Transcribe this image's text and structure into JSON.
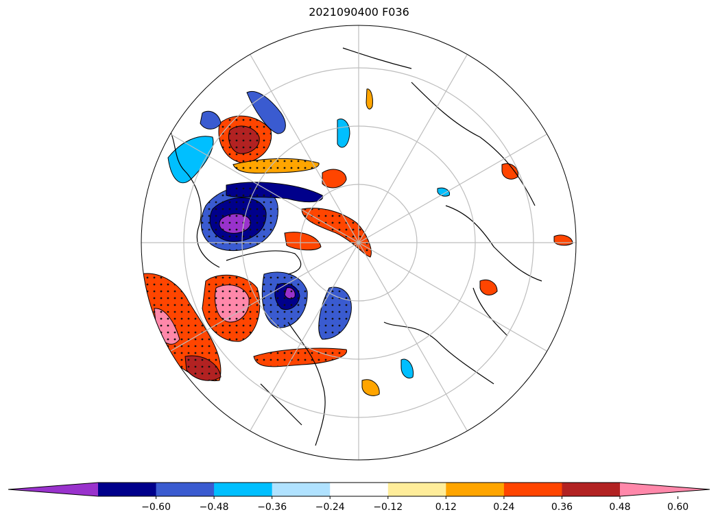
{
  "title": "2021090400 F036",
  "colorbar": {
    "bins": [
      {
        "color": "#9932cc"
      },
      {
        "color": "#00008b"
      },
      {
        "color": "#3a5bd0"
      },
      {
        "color": "#00bfff"
      },
      {
        "color": "#b0e2ff"
      },
      {
        "color": "#ffffff"
      },
      {
        "color": "#ffed9a"
      },
      {
        "color": "#ffa500"
      },
      {
        "color": "#ff4500"
      },
      {
        "color": "#b22222"
      },
      {
        "color": "#ff88aa"
      }
    ],
    "tick_labels": [
      "−0.60",
      "−0.48",
      "−0.36",
      "−0.24",
      "−0.12",
      "0.12",
      "0.24",
      "0.36",
      "0.48",
      "0.60"
    ],
    "extend": "both"
  },
  "map": {
    "projection": "north-polar-stereographic",
    "graticule_color": "#bdbdbd",
    "coastline_color": "#000000",
    "stippling": "significance dots"
  }
}
